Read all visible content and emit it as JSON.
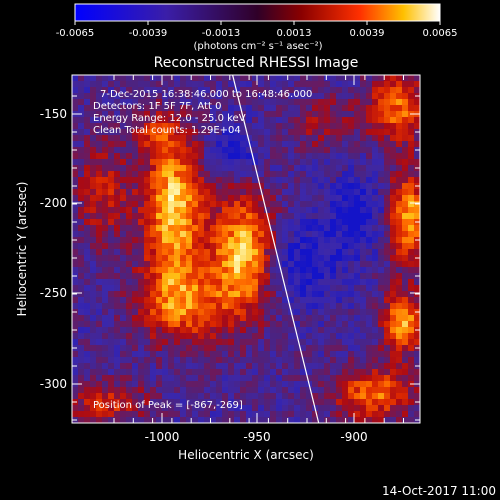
{
  "colorbar": {
    "ticks": [
      "-0.0065",
      "-0.0039",
      "-0.0013",
      "0.0013",
      "0.0039",
      "0.0065"
    ],
    "units": "(photons cm⁻² s⁻¹ asec⁻²)",
    "range": [
      -0.0065,
      0.0065
    ]
  },
  "title": "Reconstructed RHESSI Image",
  "info": {
    "line1": "7-Dec-2015 16:38:46.000 to 16:48:46.000",
    "line2": "Detectors: 1F 5F 7F, Att 0",
    "line3": "Energy Range: 12.0 - 25.0 keV",
    "line4": "Clean     Total counts: 1.29E+04"
  },
  "peak_label": "Position of Peak = [-867,-269]",
  "axes": {
    "xlabel": "Heliocentric X (arcsec)",
    "ylabel": "Heliocentric Y (arcsec)",
    "xticks": [
      "-1000",
      "-950",
      "-900"
    ],
    "yticks": [
      "-150",
      "-200",
      "-250",
      "-300"
    ],
    "xlim": [
      -1047,
      -865
    ],
    "ylim": [
      -322,
      -127
    ]
  },
  "limb": {
    "x_top": -963,
    "x_bottom": -918
  },
  "footer_date": "14-Oct-2017 11:00"
}
